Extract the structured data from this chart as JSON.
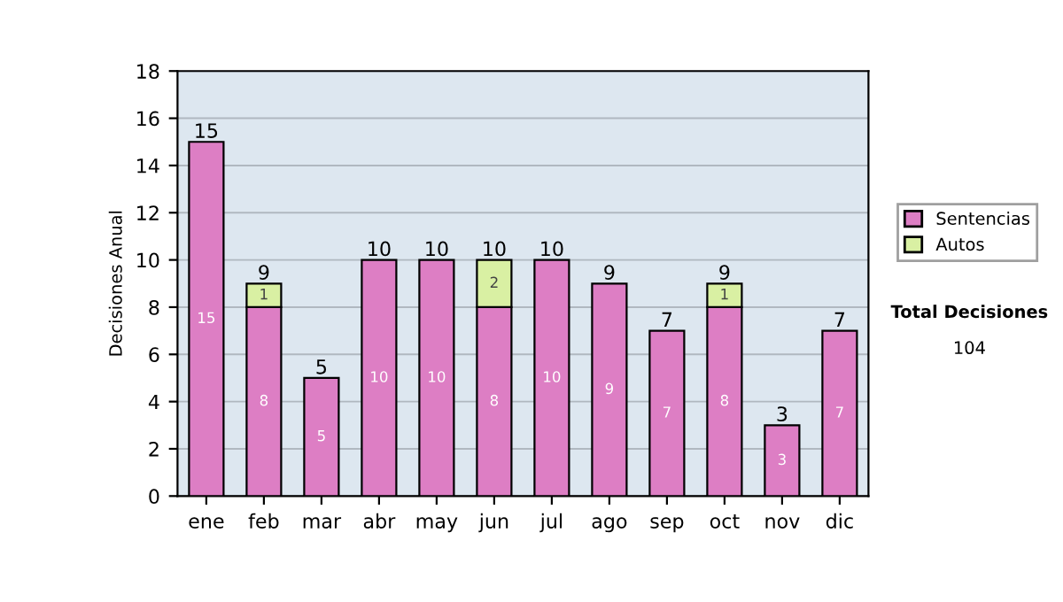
{
  "chart_data": {
    "type": "bar",
    "stacked": true,
    "ylabel": "Decisiones Anual",
    "categories": [
      "ene",
      "feb",
      "mar",
      "abr",
      "may",
      "jun",
      "jul",
      "ago",
      "sep",
      "oct",
      "nov",
      "dic"
    ],
    "series": [
      {
        "name": "Sentencias",
        "color": "#dd7ec4",
        "values": [
          15,
          8,
          5,
          10,
          10,
          8,
          10,
          9,
          7,
          8,
          3,
          7
        ]
      },
      {
        "name": "Autos",
        "color": "#d9f0a3",
        "values": [
          null,
          1,
          null,
          null,
          null,
          2,
          null,
          null,
          null,
          1,
          null,
          null
        ]
      }
    ],
    "totals": [
      "15",
      "9",
      "5",
      "10",
      "10",
      "10",
      "10",
      "9",
      "7",
      "9",
      "3",
      "7"
    ],
    "data_labels": true,
    "ylim": [
      0,
      18
    ],
    "yticks": [
      0,
      2,
      4,
      6,
      8,
      10,
      12,
      14,
      16,
      18
    ],
    "grid": "y",
    "legend": "right",
    "annotations": [
      "Total Decisiones",
      "104"
    ]
  }
}
